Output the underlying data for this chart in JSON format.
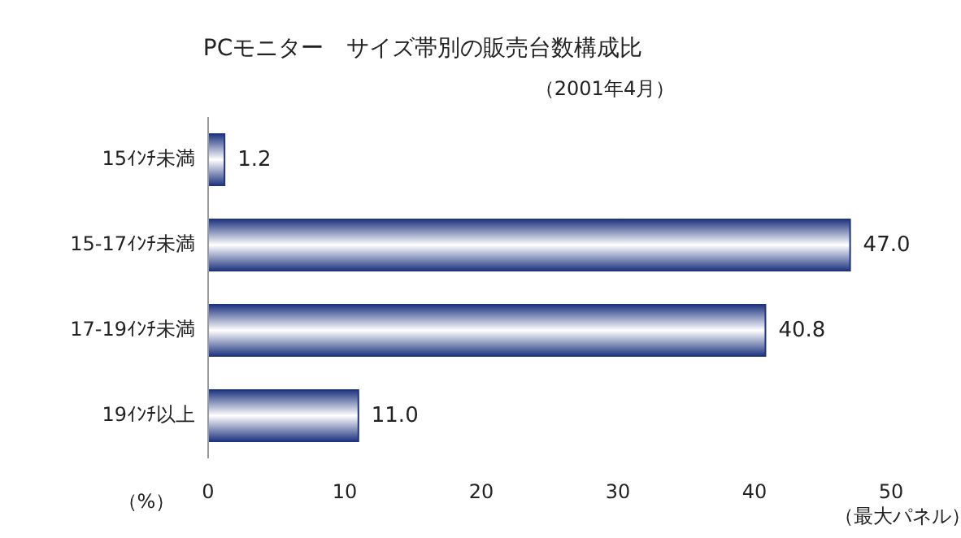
{
  "chart_data": {
    "type": "bar",
    "orientation": "horizontal",
    "title": "PCモニター　サイズ帯別の販売台数構成比",
    "subtitle": "（2001年4月）",
    "xlabel": "（%）",
    "categories": [
      "15ｲﾝﾁ未満",
      "15-17ｲﾝﾁ未満",
      "17-19ｲﾝﾁ未満",
      "19ｲﾝﾁ以上"
    ],
    "values": [
      1.2,
      47.0,
      40.8,
      11.0
    ],
    "value_labels": [
      "1.2",
      "47.0",
      "40.8",
      "11.0"
    ],
    "color": "#1f3580",
    "xlim": [
      0,
      50
    ],
    "xticks": [
      0,
      10,
      20,
      30,
      40,
      50
    ],
    "grid": false,
    "annotations": [
      "（最大パネル）"
    ]
  }
}
